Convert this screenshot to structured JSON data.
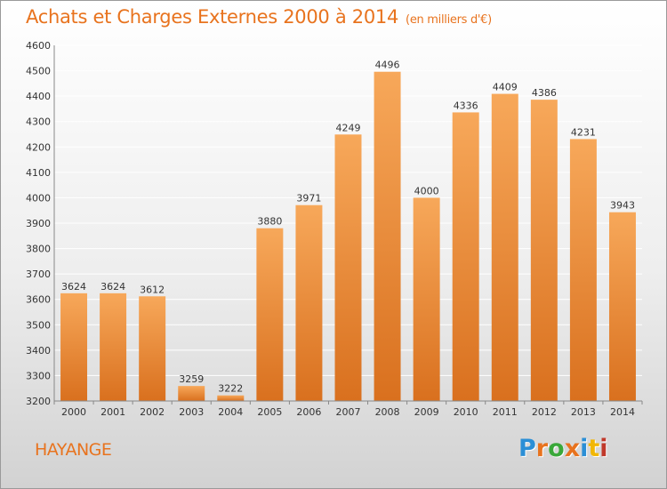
{
  "title": "Achats et Charges Externes 2000 à 2014",
  "subtitle": "(en milliers d'€)",
  "city": "HAYANGE",
  "logo": {
    "letters": [
      "P",
      "r",
      "o",
      "x",
      "i",
      "t",
      "i"
    ],
    "colors": [
      "#2b8fd6",
      "#e8731e",
      "#3aa83a",
      "#e8731e",
      "#2b8fd6",
      "#f2b705",
      "#c0392b"
    ]
  },
  "colors": {
    "title": "#e8731e",
    "bar_top": "#f7a85a",
    "bar_bottom": "#d9701e",
    "grid": "#ffffff",
    "text": "#333333"
  },
  "chart_data": {
    "type": "bar",
    "title": "Achats et Charges Externes 2000 à 2014",
    "subtitle": "(en milliers d'€)",
    "categories": [
      "2000",
      "2001",
      "2002",
      "2003",
      "2004",
      "2005",
      "2006",
      "2007",
      "2008",
      "2009",
      "2010",
      "2011",
      "2012",
      "2013",
      "2014"
    ],
    "values": [
      3624,
      3624,
      3612,
      3259,
      3222,
      3880,
      3971,
      4249,
      4496,
      4000,
      4336,
      4409,
      4386,
      4231,
      3943
    ],
    "data_labels": [
      "3624",
      "3624",
      "3612",
      "3259",
      "3222",
      "3880",
      "3971",
      "4249",
      "4496",
      "4000",
      "4336",
      "4409",
      "4386",
      "4231",
      "3943"
    ],
    "yticks": [
      "3200",
      "3300",
      "3400",
      "3500",
      "3600",
      "3700",
      "3800",
      "3900",
      "4000",
      "4100",
      "4200",
      "4300",
      "4400",
      "4500",
      "4600"
    ],
    "ylim": [
      3200,
      4600
    ],
    "xlabel": "",
    "ylabel": "",
    "grid": true,
    "legend": "none"
  }
}
